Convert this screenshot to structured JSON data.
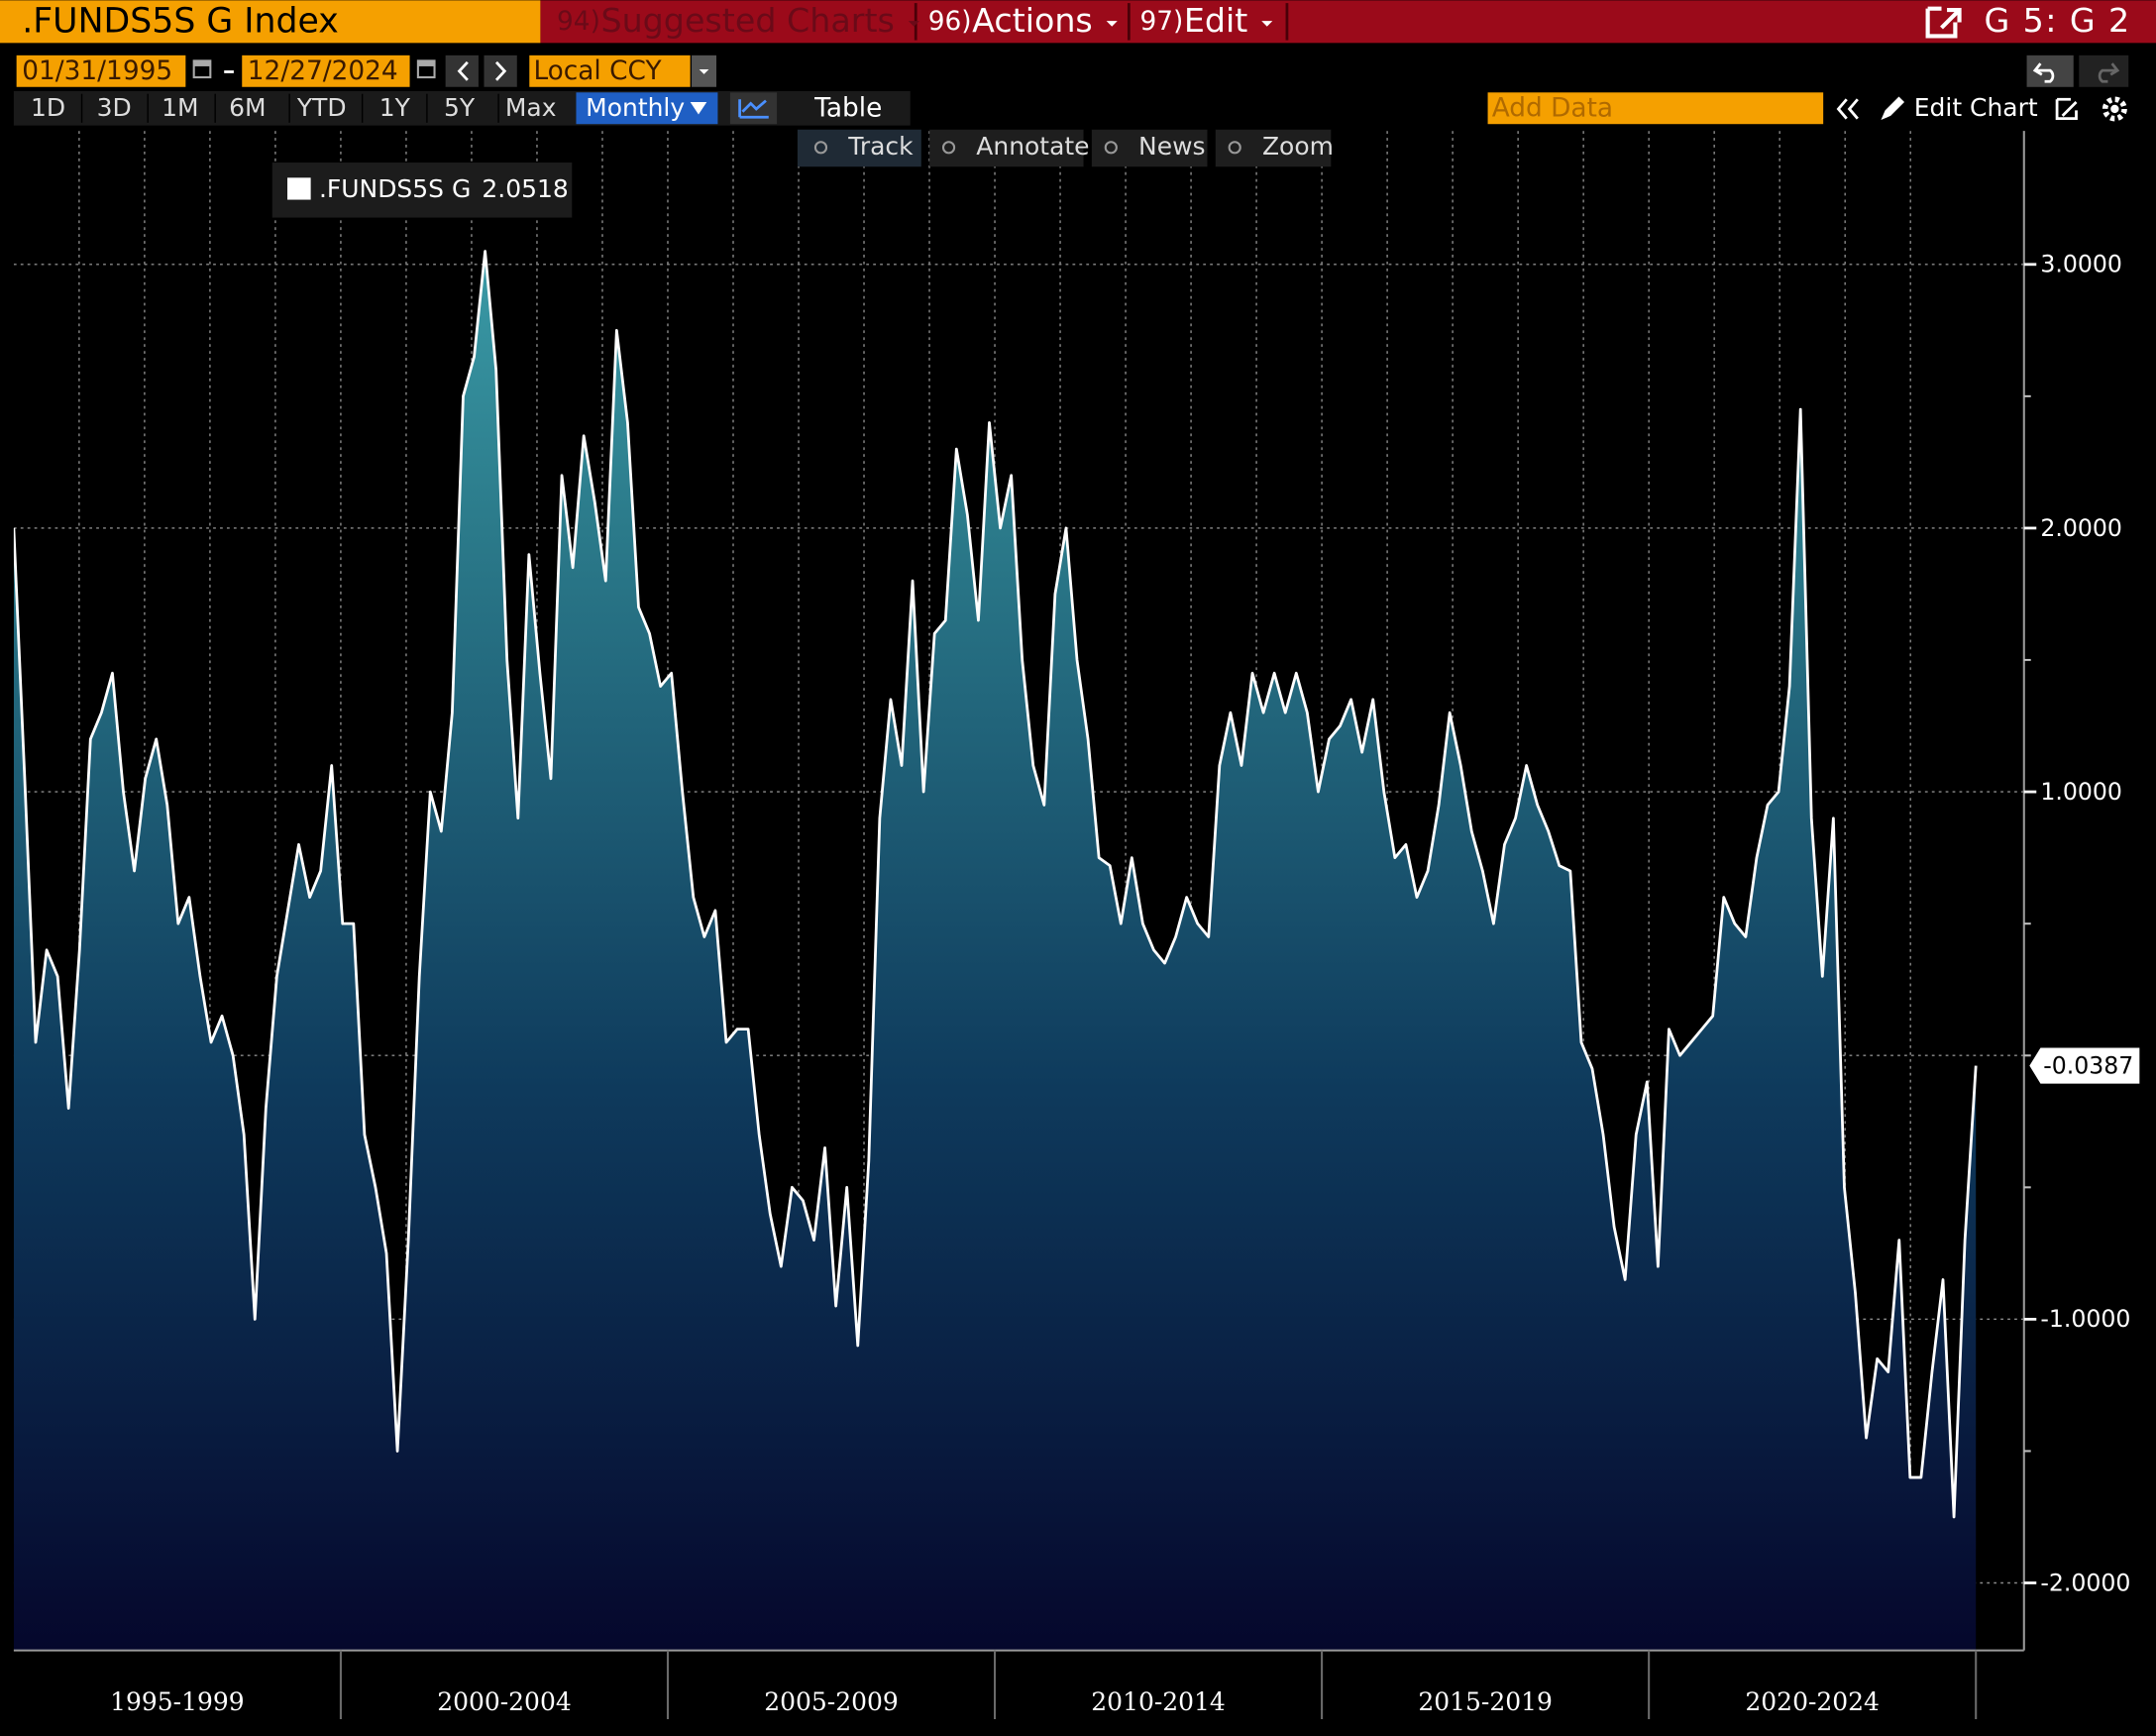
{
  "header": {
    "security": ".FUNDS5S G Index",
    "menus": [
      {
        "number": "94)",
        "label": "Suggested Charts"
      },
      {
        "number": "96)",
        "label": "Actions"
      },
      {
        "number": "97)",
        "label": "Edit"
      }
    ],
    "window": "G 5: G 2"
  },
  "controls": {
    "start_date": "01/31/1995",
    "end_date": "12/27/2024",
    "currency": "Local CCY",
    "ranges": [
      "1D",
      "3D",
      "1M",
      "6M",
      "YTD",
      "1Y",
      "5Y",
      "Max"
    ],
    "frequency": "Monthly",
    "table": "Table",
    "add_data": "Add Data",
    "edit_chart": "Edit Chart",
    "tools": [
      "Track",
      "Annotate",
      "News",
      "Zoom"
    ]
  },
  "chart_data": {
    "type": "area",
    "series": [
      {
        "name": ".FUNDS5S G",
        "color": "#ffffff",
        "values": [
          2.0,
          1.05,
          0.05,
          0.4,
          0.3,
          -0.2,
          0.4,
          1.2,
          1.3,
          1.45,
          1.0,
          0.7,
          1.05,
          1.2,
          0.95,
          0.5,
          0.6,
          0.3,
          0.05,
          0.15,
          0,
          -0.3,
          -1.0,
          -0.2,
          0.3,
          0.55,
          0.8,
          0.6,
          0.7,
          1.1,
          0.5,
          0.5,
          -0.3,
          -0.5,
          -0.75,
          -1.5,
          -0.7,
          0.3,
          1.0,
          0.85,
          1.3,
          2.5,
          2.65,
          3.05,
          2.6,
          1.5,
          0.9,
          1.9,
          1.45,
          1.05,
          2.2,
          1.85,
          2.35,
          2.1,
          1.8,
          2.75,
          2.4,
          1.7,
          1.6,
          1.4,
          1.45,
          1.0,
          0.6,
          0.45,
          0.55,
          0.05,
          0.1,
          0.1,
          -0.3,
          -0.6,
          -0.8,
          -0.5,
          -0.55,
          -0.7,
          -0.35,
          -0.95,
          -0.5,
          -1.1,
          -0.4,
          0.9,
          1.35,
          1.1,
          1.8,
          1.0,
          1.6,
          1.65,
          2.3,
          2.05,
          1.65,
          2.4,
          2.0,
          2.2,
          1.5,
          1.1,
          0.95,
          1.75,
          2.0,
          1.5,
          1.2,
          0.75,
          0.72,
          0.5,
          0.75,
          0.5,
          0.4,
          0.35,
          0.45,
          0.6,
          0.5,
          0.45,
          1.1,
          1.3,
          1.1,
          1.45,
          1.3,
          1.45,
          1.3,
          1.45,
          1.3,
          1.0,
          1.2,
          1.25,
          1.35,
          1.15,
          1.35,
          1.0,
          0.75,
          0.8,
          0.6,
          0.7,
          0.95,
          1.3,
          1.1,
          0.85,
          0.7,
          0.5,
          0.8,
          0.9,
          1.1,
          0.95,
          0.85,
          0.72,
          0.7,
          0.05,
          -0.05,
          -0.3,
          -0.65,
          -0.85,
          -0.3,
          -0.1,
          -0.8,
          0.1,
          0,
          0.05,
          0.1,
          0.15,
          0.6,
          0.5,
          0.45,
          0.75,
          0.95,
          1.0,
          1.4,
          2.45,
          0.9,
          0.3,
          0.9,
          -0.5,
          -0.9,
          -1.45,
          -1.15,
          -1.2,
          -0.7,
          -1.6,
          -1.6,
          -1.2,
          -0.85,
          -1.75,
          -0.7,
          -0.0387
        ]
      }
    ],
    "legend_value": 2.0518,
    "xlim": [
      1995,
      2025
    ],
    "xticks": [
      {
        "value": 1995,
        "label": "1995-1999"
      },
      {
        "value": 2000,
        "label": "2000-2004"
      },
      {
        "value": 2005,
        "label": "2005-2009"
      },
      {
        "value": 2010,
        "label": "2010-2014"
      },
      {
        "value": 2015,
        "label": "2015-2019"
      },
      {
        "value": 2020,
        "label": "2020-2024"
      }
    ],
    "ylim": [
      -2.256,
      3.506
    ],
    "yticks": [
      {
        "value": 3,
        "label": "3.0000"
      },
      {
        "value": 2,
        "label": "2.0000"
      },
      {
        "value": 1,
        "label": "1.0000"
      },
      {
        "value": -1,
        "label": "-1.0000"
      },
      {
        "value": -2,
        "label": "-2.0000"
      }
    ],
    "yminor_ticks": [
      2.5,
      1.5,
      0.5,
      0,
      -0.5,
      -1.5
    ],
    "grid": true
  }
}
